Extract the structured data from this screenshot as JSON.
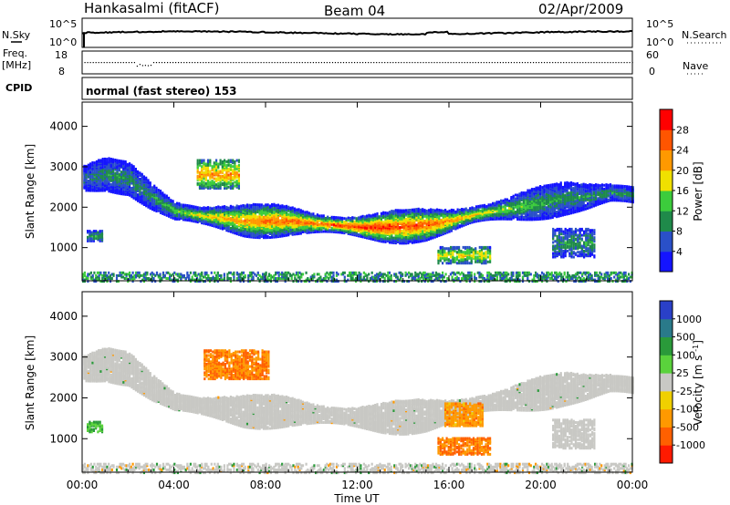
{
  "header": {
    "station": "Hankasalmi (fitACF)",
    "beam": "Beam 04",
    "date": "02/Apr/2009"
  },
  "noise_panel": {
    "left_label": "N.Sky",
    "right_label": "N.Search",
    "left_top": "10^5",
    "left_bottom": "10^0",
    "right_top": "10^5",
    "right_bottom": "10^0"
  },
  "freq_panel": {
    "left_label_1": "Freq.",
    "left_label_2": "[MHz]",
    "left_top": "18",
    "left_bottom": "8",
    "right_label": "Nave",
    "right_top": "60",
    "right_bottom": "0"
  },
  "cpid_panel": {
    "label": "CPID",
    "text": "normal (fast stereo) 153"
  },
  "x_axis": {
    "title": "Time UT",
    "ticks": [
      "00:00",
      "04:00",
      "08:00",
      "12:00",
      "16:00",
      "20:00",
      "00:00"
    ]
  },
  "power_panel": {
    "ylabel": "Slant Range [km]",
    "yticks": [
      "1000",
      "2000",
      "3000",
      "4000"
    ],
    "colorbar_label": "Power [dB]",
    "colorbar_ticks": [
      "4",
      "8",
      "12",
      "16",
      "20",
      "24",
      "28"
    ],
    "colors": [
      "#1414ff",
      "#2a50c8",
      "#1f8a4a",
      "#3ccc3c",
      "#f0e000",
      "#ff9900",
      "#ff5500",
      "#ff0000"
    ]
  },
  "velocity_panel": {
    "ylabel": "Slant Range [km]",
    "yticks": [
      "1000",
      "2000",
      "3000",
      "4000"
    ],
    "colorbar_label": "Velocity [m s^-1]",
    "colorbar_ticks": [
      "1000",
      "500",
      "100",
      "25",
      "-25",
      "-100",
      "-500",
      "-1000"
    ],
    "colors": [
      "#2a40c8",
      "#2a7a8a",
      "#2a9a3a",
      "#5ad23c",
      "#c8c8c4",
      "#f0d000",
      "#ff9900",
      "#ff6000",
      "#ff1a00"
    ]
  },
  "chart_data": [
    {
      "type": "heatmap",
      "title": "Power",
      "ylabel": "Slant Range [km]",
      "xlabel": "Time UT",
      "xlim": [
        0,
        24
      ],
      "ylim": [
        180,
        4600
      ],
      "colorbar_range": [
        0,
        30
      ],
      "regions": [
        {
          "name": "main_band",
          "x": [
            0.0,
            1.0,
            2.0,
            3.0,
            4.0,
            5.0,
            6.0,
            7.0,
            8.0,
            9.0,
            10.0,
            11.0,
            12.0,
            13.0,
            14.0,
            15.0,
            16.0,
            17.0,
            18.0,
            19.0,
            20.0,
            21.0,
            22.0,
            23.0,
            24.0
          ],
          "center": [
            2750,
            2850,
            2750,
            2300,
            1950,
            1850,
            1780,
            1700,
            1700,
            1700,
            1650,
            1600,
            1560,
            1540,
            1560,
            1600,
            1700,
            1850,
            1950,
            2050,
            2150,
            2250,
            2300,
            2400,
            2350
          ],
          "peak_power": [
            8,
            10,
            10,
            10,
            14,
            18,
            20,
            22,
            24,
            24,
            24,
            26,
            28,
            28,
            26,
            26,
            22,
            20,
            16,
            14,
            12,
            10,
            10,
            10,
            10
          ]
        },
        {
          "name": "patch_05h_3000km",
          "x": [
            5.0,
            6.8
          ],
          "range": [
            2500,
            3200
          ],
          "peak_power": 22
        },
        {
          "name": "patch_17h_900km",
          "x": [
            15.5,
            17.8
          ],
          "range": [
            650,
            1050
          ],
          "peak_power": 18
        },
        {
          "name": "patch_21h_1200km",
          "x": [
            20.5,
            22.3
          ],
          "range": [
            800,
            1500
          ],
          "peak_power": 10
        },
        {
          "name": "patch_01h_1300km",
          "x": [
            0.2,
            0.9
          ],
          "range": [
            1200,
            1450
          ],
          "peak_power": 12
        }
      ]
    },
    {
      "type": "heatmap",
      "title": "Velocity",
      "ylabel": "Slant Range [km]",
      "xlabel": "Time UT",
      "xlim": [
        0,
        24
      ],
      "ylim": [
        180,
        4600
      ],
      "colorbar_range": [
        -1000,
        1000
      ],
      "regions": [
        {
          "name": "main_band",
          "x": [
            0.0,
            1.0,
            2.0,
            3.0,
            4.0,
            5.0,
            6.0,
            7.0,
            8.0,
            9.0,
            10.0,
            11.0,
            12.0,
            13.0,
            14.0,
            15.0,
            16.0,
            17.0,
            18.0,
            19.0,
            20.0,
            21.0,
            22.0,
            23.0,
            24.0
          ],
          "center": [
            2750,
            2850,
            2750,
            2300,
            1950,
            1850,
            1780,
            1700,
            1700,
            1700,
            1650,
            1600,
            1560,
            1540,
            1560,
            1600,
            1700,
            1850,
            1950,
            2050,
            2150,
            2250,
            2300,
            2400,
            2350
          ],
          "velocity": [
            0,
            0,
            0,
            0,
            0,
            0,
            0,
            0,
            0,
            0,
            0,
            0,
            0,
            0,
            0,
            0,
            0,
            0,
            0,
            0,
            0,
            0,
            0,
            0,
            0
          ]
        },
        {
          "name": "patch_06h_3000km",
          "x": [
            5.3,
            8.1
          ],
          "range": [
            2500,
            3200
          ],
          "velocity": -500
        },
        {
          "name": "patch_17h_800km",
          "x": [
            15.5,
            17.8
          ],
          "range": [
            650,
            1050
          ],
          "velocity": -500
        },
        {
          "name": "patch_16h_1600km",
          "x": [
            15.8,
            17.5
          ],
          "range": [
            1350,
            1900
          ],
          "velocity": -300
        },
        {
          "name": "patch_21h_1200km",
          "x": [
            20.5,
            22.3
          ],
          "range": [
            800,
            1500
          ],
          "velocity": 0
        },
        {
          "name": "patch_01h_1300km",
          "x": [
            0.2,
            0.9
          ],
          "range": [
            1200,
            1450
          ],
          "velocity": 100
        }
      ]
    }
  ]
}
